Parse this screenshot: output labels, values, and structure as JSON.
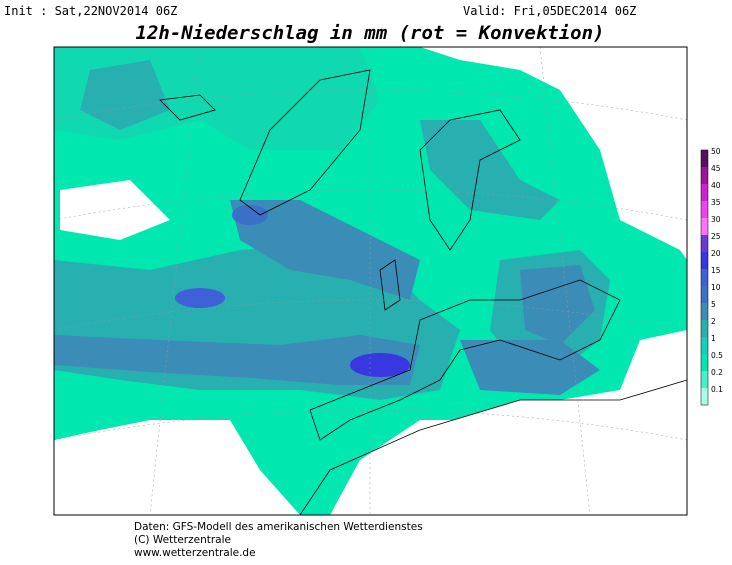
{
  "header": {
    "init": "Init : Sat,22NOV2014 06Z",
    "valid": "Valid: Fri,05DEC2014 06Z",
    "title": "12h-Niederschlag in mm (rot = Konvektion)"
  },
  "legend": {
    "items": [
      {
        "label": "50",
        "color": "#5a1060"
      },
      {
        "label": "45",
        "color": "#a010a0"
      },
      {
        "label": "40",
        "color": "#d020d0"
      },
      {
        "label": "35",
        "color": "#f040f0"
      },
      {
        "label": "30",
        "color": "#ff70ff"
      },
      {
        "label": "25",
        "color": "#6a3ad8"
      },
      {
        "label": "20",
        "color": "#3838e0"
      },
      {
        "label": "15",
        "color": "#4060d8"
      },
      {
        "label": "10",
        "color": "#3a70c8"
      },
      {
        "label": "5",
        "color": "#3c8cb8"
      },
      {
        "label": "2",
        "color": "#28b0b0"
      },
      {
        "label": "1",
        "color": "#10d0c0"
      },
      {
        "label": "0.5",
        "color": "#00e8b0"
      },
      {
        "label": "0.2",
        "color": "#40f4c8"
      },
      {
        "label": "0.1",
        "color": "#a8ffe8"
      }
    ]
  },
  "footer": {
    "lines": [
      "Daten: GFS-Modell des amerikanischen Wetterdienstes",
      "(C) Wetterzentrale",
      "www.wetterzentrale.de"
    ]
  }
}
